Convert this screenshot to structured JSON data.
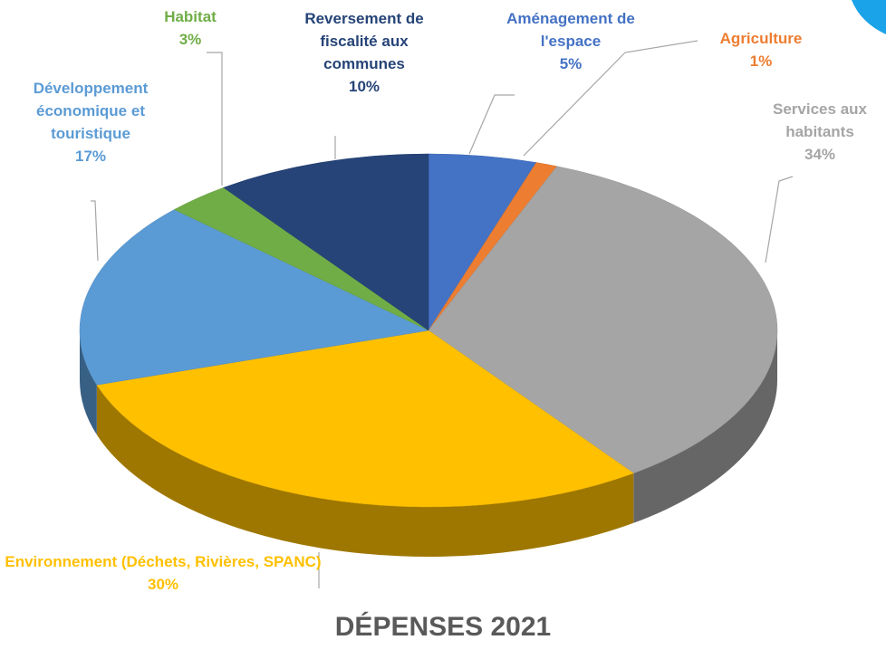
{
  "chart_data": {
    "type": "pie",
    "title": "DÉPENSES 2021",
    "categories": [
      "Aménagement de l'espace",
      "Agriculture",
      "Services aux habitants",
      "Environnement (Déchets, Rivières, SPANC)",
      "Développement économique et touristique",
      "Habitat",
      "Reversement de fiscalité aux communes"
    ],
    "values": [
      5,
      1,
      34,
      30,
      17,
      3,
      10
    ],
    "value_labels": [
      "5%",
      "1%",
      "34%",
      "30%",
      "17%",
      "3%",
      "10%"
    ],
    "colors": [
      "#4472c4",
      "#ed7d31",
      "#a5a5a5",
      "#ffc000",
      "#5b9bd5",
      "#70ad47",
      "#264478"
    ]
  }
}
